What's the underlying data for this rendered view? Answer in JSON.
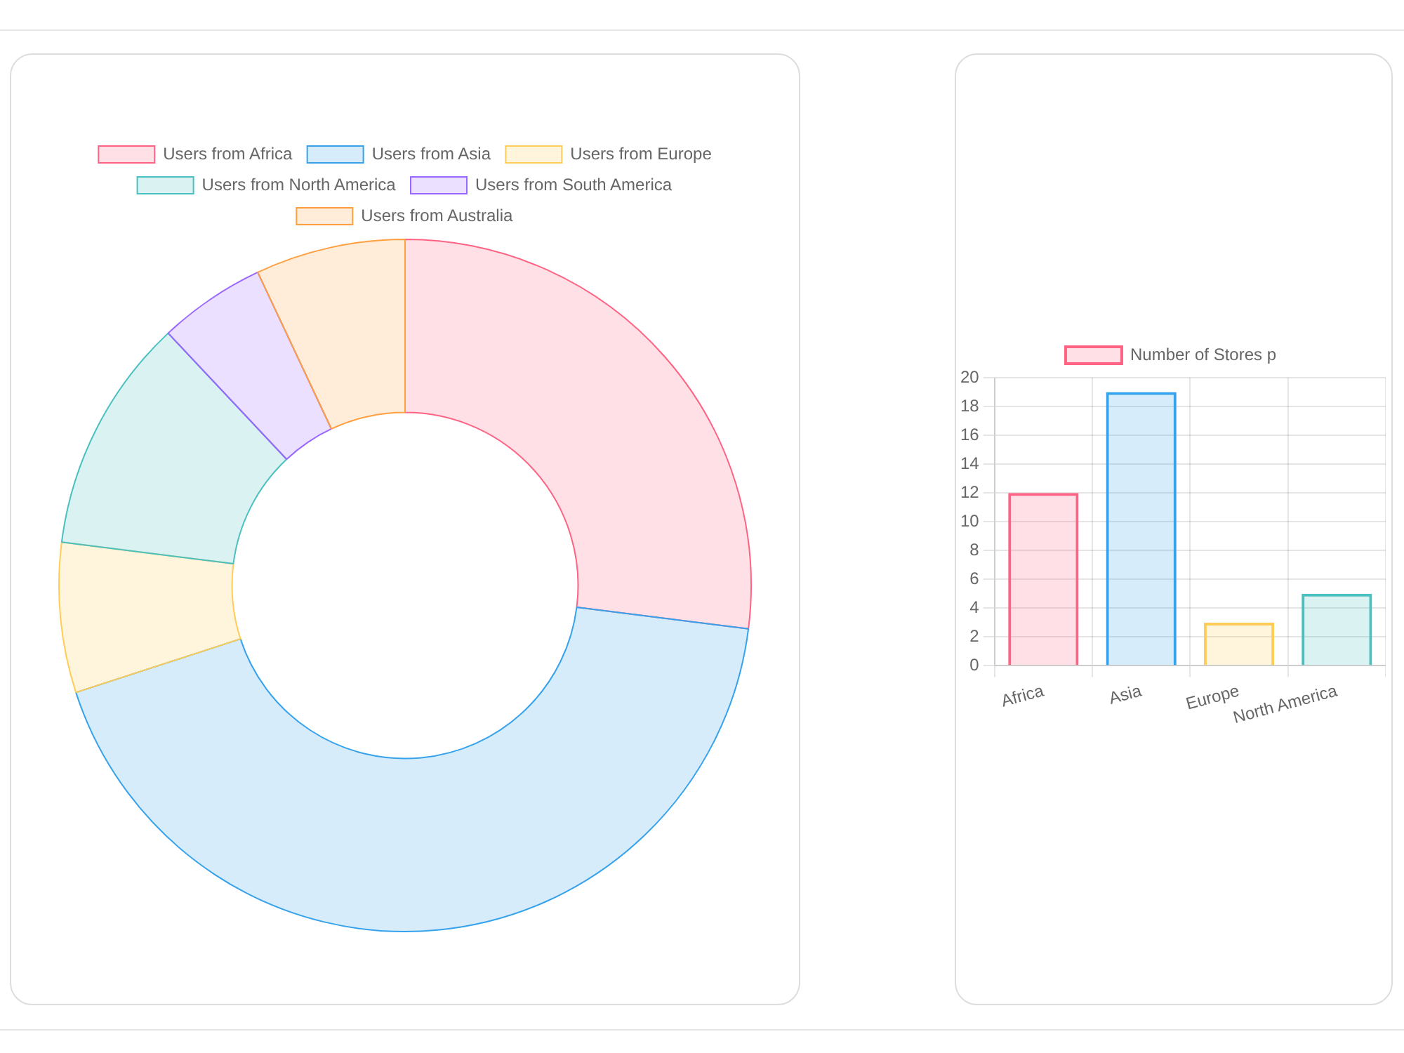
{
  "chart_data": [
    {
      "type": "donut",
      "categories": [
        "Users from Africa",
        "Users from Asia",
        "Users from Europe",
        "Users from North America",
        "Users from South America",
        "Users from Australia"
      ],
      "values": [
        27,
        43,
        7,
        11,
        5,
        7
      ],
      "colors": [
        "#ff6384",
        "#36a2eb",
        "#ffcd56",
        "#4bc0c0",
        "#9966ff",
        "#ff9f40"
      ],
      "legend": "top"
    },
    {
      "type": "bar",
      "categories": [
        "Africa",
        "Asia",
        "Europe",
        "North America"
      ],
      "series": [
        {
          "name": "Number of Stores p",
          "colors": [
            "#ff6384",
            "#36a2eb",
            "#ffcd56",
            "#4bc0c0"
          ],
          "values": [
            12,
            19,
            3,
            5
          ]
        }
      ],
      "ylim": [
        0,
        20
      ],
      "yticks": [
        0,
        2,
        4,
        6,
        8,
        10,
        12,
        14,
        16,
        18,
        20
      ],
      "grid": true,
      "legend": "top"
    }
  ]
}
